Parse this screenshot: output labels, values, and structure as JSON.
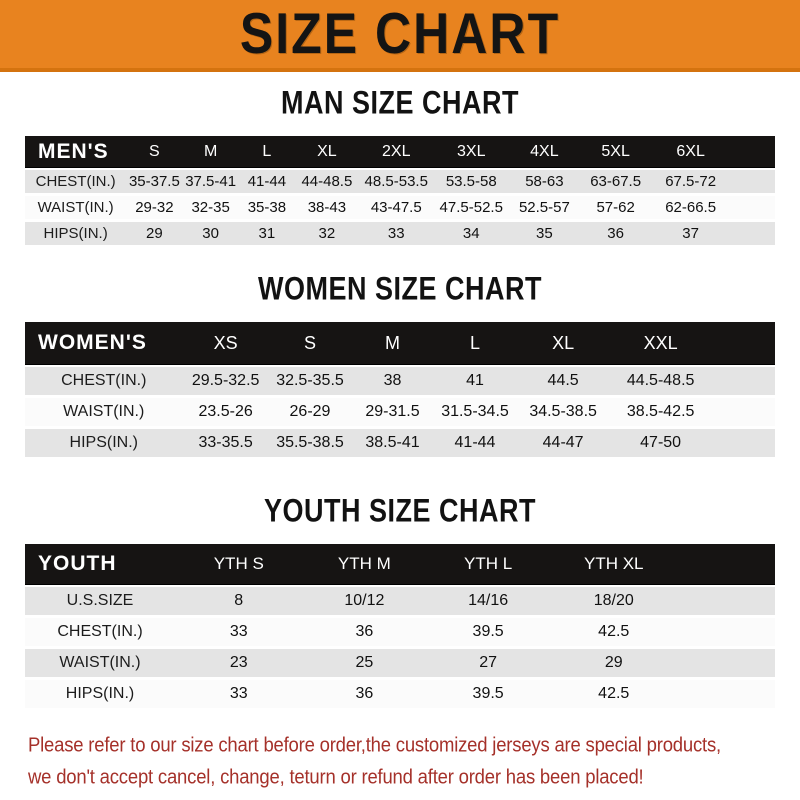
{
  "banner": {
    "title": "SIZE CHART",
    "bg_color": "#E8831F",
    "text_color": "#141414"
  },
  "sections": [
    {
      "id": "men",
      "heading": "MAN SIZE CHART",
      "table": {
        "header_label": "MEN'S",
        "columns": [
          "S",
          "M",
          "L",
          "XL",
          "2XL",
          "3XL",
          "4XL",
          "5XL",
          "6XL"
        ],
        "rows": [
          {
            "label": "CHEST(IN.)",
            "values": [
              "35-37.5",
              "37.5-41",
              "41-44",
              "44-48.5",
              "48.5-53.5",
              "53.5-58",
              "58-63",
              "63-67.5",
              "67.5-72"
            ]
          },
          {
            "label": "WAIST(IN.)",
            "values": [
              "29-32",
              "32-35",
              "35-38",
              "38-43",
              "43-47.5",
              "47.5-52.5",
              "52.5-57",
              "57-62",
              "62-66.5"
            ]
          },
          {
            "label": "HIPS(IN.)",
            "values": [
              "29",
              "30",
              "31",
              "32",
              "33",
              "34",
              "35",
              "36",
              "37"
            ]
          }
        ]
      }
    },
    {
      "id": "women",
      "heading": "WOMEN SIZE CHART",
      "table": {
        "header_label": "WOMEN'S",
        "columns": [
          "XS",
          "S",
          "M",
          "L",
          "XL",
          "XXL"
        ],
        "rows": [
          {
            "label": "CHEST(IN.)",
            "values": [
              "29.5-32.5",
              "32.5-35.5",
              "38",
              "41",
              "44.5",
              "44.5-48.5"
            ]
          },
          {
            "label": "WAIST(IN.)",
            "values": [
              "23.5-26",
              "26-29",
              "29-31.5",
              "31.5-34.5",
              "34.5-38.5",
              "38.5-42.5"
            ]
          },
          {
            "label": "HIPS(IN.)",
            "values": [
              "33-35.5",
              "35.5-38.5",
              "38.5-41",
              "41-44",
              "44-47",
              "47-50"
            ]
          }
        ]
      }
    },
    {
      "id": "youth",
      "heading": "YOUTH SIZE CHART",
      "table": {
        "header_label": "YOUTH",
        "columns": [
          "YTH S",
          "YTH M",
          "YTH L",
          "YTH XL"
        ],
        "rows": [
          {
            "label": "U.S.SIZE",
            "values": [
              "8",
              "10/12",
              "14/16",
              "18/20"
            ]
          },
          {
            "label": "CHEST(IN.)",
            "values": [
              "33",
              "36",
              "39.5",
              "42.5"
            ]
          },
          {
            "label": "WAIST(IN.)",
            "values": [
              "23",
              "25",
              "27",
              "29"
            ]
          },
          {
            "label": "HIPS(IN.)",
            "values": [
              "33",
              "36",
              "39.5",
              "42.5"
            ]
          }
        ]
      }
    }
  ],
  "footnote": {
    "line1": "Please refer to our size chart before order,the customized jerseys are special products,",
    "line2": "we don't accept cancel, change, teturn or refund after order has been placed!",
    "color": "#A5312A"
  },
  "colors": {
    "header_bar": "#161413",
    "row_gray": "#E4E4E4",
    "row_white": "#FBFBFB"
  }
}
